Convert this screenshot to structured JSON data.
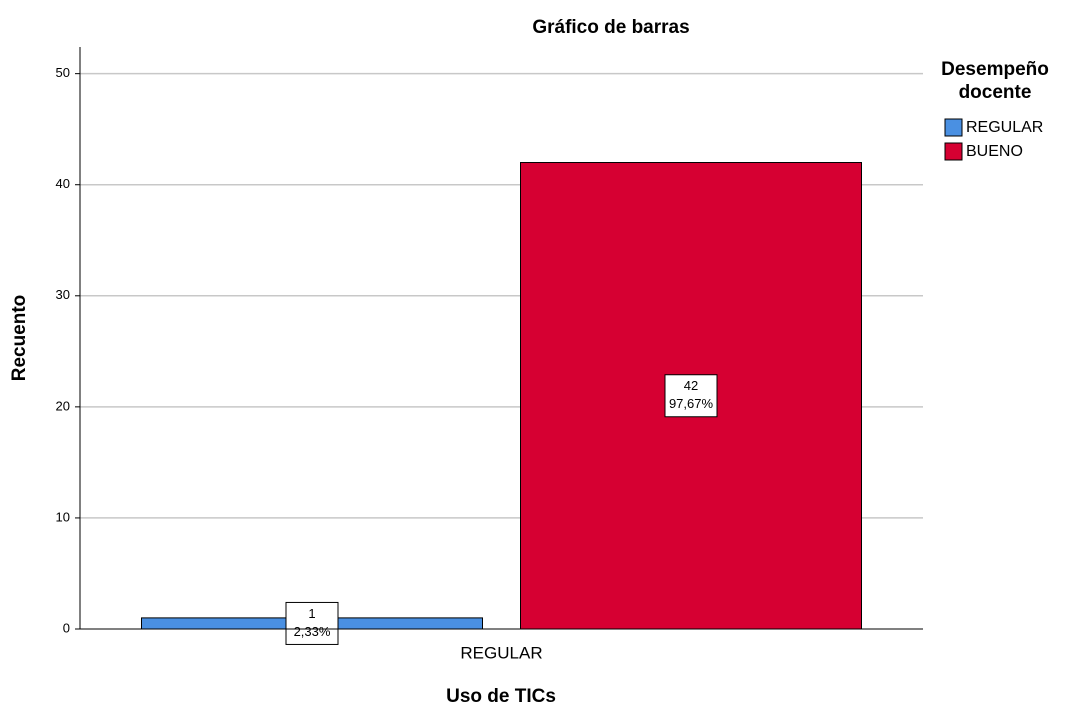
{
  "chart_data": {
    "type": "bar",
    "title": "Gráfico de barras",
    "x_label": "Uso de TICs",
    "y_label": "Recuento",
    "legend_title": "Desempeño docente",
    "categories": [
      "REGULAR"
    ],
    "series": [
      {
        "name": "REGULAR",
        "color": "#4a90e2",
        "values": [
          1
        ],
        "percent_labels": [
          "2,33%"
        ]
      },
      {
        "name": "BUENO",
        "color": "#d60032",
        "values": [
          42
        ],
        "percent_labels": [
          "97,67%"
        ]
      }
    ],
    "ylim": [
      0,
      52.4
    ],
    "yticks": [
      0,
      10,
      20,
      30,
      40,
      50
    ],
    "grid": true,
    "legend": "right"
  }
}
